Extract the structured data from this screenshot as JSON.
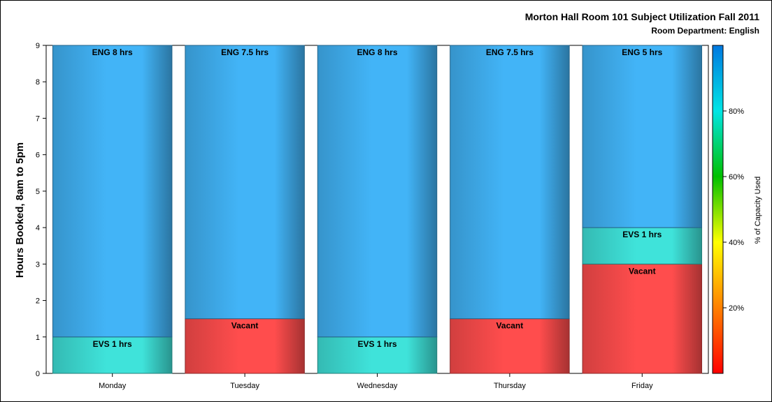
{
  "chart_data": {
    "type": "bar",
    "stacked": true,
    "title": "Morton Hall Room 101 Subject Utilization Fall 2011",
    "subtitle": "Room Department:  English",
    "xlabel": "",
    "ylabel": "Hours Booked, 8am to 5pm",
    "ylim": [
      0,
      9
    ],
    "yticks": [
      "0",
      "1",
      "2",
      "3",
      "4",
      "5",
      "6",
      "7",
      "8",
      "9"
    ],
    "categories": [
      "Monday",
      "Tuesday",
      "Wednesday",
      "Thursday",
      "Friday"
    ],
    "bars": [
      {
        "category": "Monday",
        "segments": [
          {
            "label": "EVS 1 hrs",
            "value": 1,
            "color": "#3fe3da"
          },
          {
            "label": "ENG 8 hrs",
            "value": 8,
            "color": "#42b4f7"
          }
        ]
      },
      {
        "category": "Tuesday",
        "segments": [
          {
            "label": "Vacant",
            "value": 1.5,
            "color": "#ff4d4d"
          },
          {
            "label": "ENG 7.5 hrs",
            "value": 7.5,
            "color": "#42b4f7"
          }
        ]
      },
      {
        "category": "Wednesday",
        "segments": [
          {
            "label": "EVS 1 hrs",
            "value": 1,
            "color": "#3fe3da"
          },
          {
            "label": "ENG 8 hrs",
            "value": 8,
            "color": "#42b4f7"
          }
        ]
      },
      {
        "category": "Thursday",
        "segments": [
          {
            "label": "Vacant",
            "value": 1.5,
            "color": "#ff4d4d"
          },
          {
            "label": "ENG 7.5 hrs",
            "value": 7.5,
            "color": "#42b4f7"
          }
        ]
      },
      {
        "category": "Friday",
        "segments": [
          {
            "label": "Vacant",
            "value": 3,
            "color": "#ff4d4d"
          },
          {
            "label": "EVS 1 hrs",
            "value": 1,
            "color": "#3fe3da"
          },
          {
            "label": "ENG 5 hrs",
            "value": 5,
            "color": "#42b4f7"
          }
        ]
      }
    ],
    "colorbar": {
      "label": "% of Capacity Used",
      "range": [
        0,
        100
      ],
      "ticks": [
        {
          "value": 20,
          "label": "20%"
        },
        {
          "value": 40,
          "label": "40%"
        },
        {
          "value": 60,
          "label": "60%"
        },
        {
          "value": 80,
          "label": "80%"
        }
      ],
      "stops": [
        "#ff0000",
        "#ff8000",
        "#ffff00",
        "#00c000",
        "#00e5e5",
        "#0078e0"
      ]
    },
    "grid": false,
    "legend": "right"
  }
}
